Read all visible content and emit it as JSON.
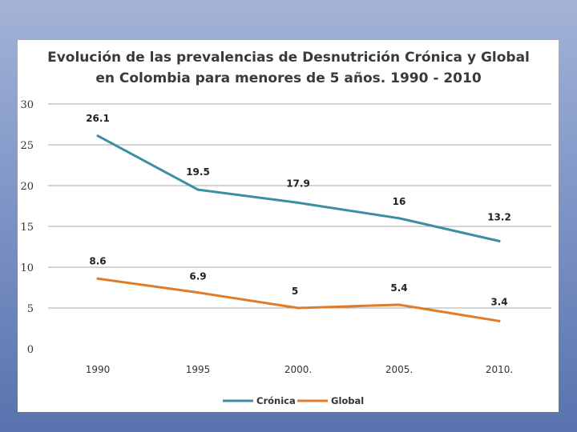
{
  "chart_data": {
    "type": "line",
    "title_line1": "Evolución de las prevalencias de Desnutrición Crónica y Global",
    "title_line2": "en Colombia para menores de 5 años.  1990 - 2010",
    "categories": [
      "1990",
      "1995",
      "2000.",
      "2005.",
      "2010."
    ],
    "ylim": [
      0,
      30
    ],
    "yticks": [
      "0",
      "5",
      "10",
      "15",
      "20",
      "25",
      "30"
    ],
    "grid": true,
    "legend_position": "bottom-center",
    "series": [
      {
        "name": "Crónica",
        "color": "#3b8ea3",
        "values": [
          26.1,
          19.5,
          17.9,
          16,
          13.2
        ],
        "labels": [
          "26.1",
          "19.5",
          "17.9",
          "16",
          "13.2"
        ]
      },
      {
        "name": "Global",
        "color": "#e07b28",
        "values": [
          8.6,
          6.9,
          5,
          5.4,
          3.4
        ],
        "labels": [
          "8.6",
          "6.9",
          "5",
          "5.4",
          "3.4"
        ]
      }
    ]
  }
}
